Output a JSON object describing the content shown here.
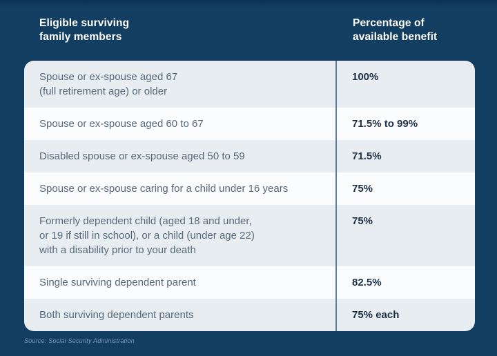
{
  "colors": {
    "background": "#123e61",
    "background_top_edge": "#0b3153",
    "row_light": "#e8edf2",
    "row_white": "#fbfcfe",
    "divider": "#5d7e9c",
    "header_text": "#ffffff",
    "label_text": "#56687a",
    "value_text": "#1d3047",
    "source_text": "#7e9ab7"
  },
  "header": {
    "col1": "Eligible surviving\nfamily members",
    "col2": "Percentage of\navailable benefit"
  },
  "table": {
    "rows": [
      {
        "label": "Spouse or ex-spouse aged 67\n(full retirement age) or older",
        "value": "100%"
      },
      {
        "label": "Spouse or ex-spouse aged 60 to 67",
        "value": "71.5% to 99%"
      },
      {
        "label": "Disabled spouse or ex-spouse aged 50 to 59",
        "value": "71.5%"
      },
      {
        "label": "Spouse or ex-spouse caring for a child under 16 years",
        "value": "75%"
      },
      {
        "label": "Formerly dependent child (aged 18 and under,\nor 19 if still in school), or a child (under age 22)\nwith a disability prior to your death",
        "value": "75%"
      },
      {
        "label": "Single surviving dependent parent",
        "value": "82.5%"
      },
      {
        "label": "Both surviving dependent parents",
        "value": "75% each"
      }
    ]
  },
  "footer": {
    "source": "Source: Social Security Administration"
  },
  "chart_data": {
    "type": "table",
    "title": "",
    "columns": [
      "Eligible surviving family members",
      "Percentage of available benefit"
    ],
    "rows": [
      [
        "Spouse or ex-spouse aged 67 (full retirement age) or older",
        "100%"
      ],
      [
        "Spouse or ex-spouse aged 60 to 67",
        "71.5% to 99%"
      ],
      [
        "Disabled spouse or ex-spouse aged 50 to 59",
        "71.5%"
      ],
      [
        "Spouse or ex-spouse caring for a child under 16 years",
        "75%"
      ],
      [
        "Formerly dependent child (aged 18 and under, or 19 if still in school), or a child (under age 22) with a disability prior to your death",
        "75%"
      ],
      [
        "Single surviving dependent parent",
        "82.5%"
      ],
      [
        "Both surviving dependent parents",
        "75% each"
      ]
    ],
    "source": "Source: Social Security Administration"
  }
}
